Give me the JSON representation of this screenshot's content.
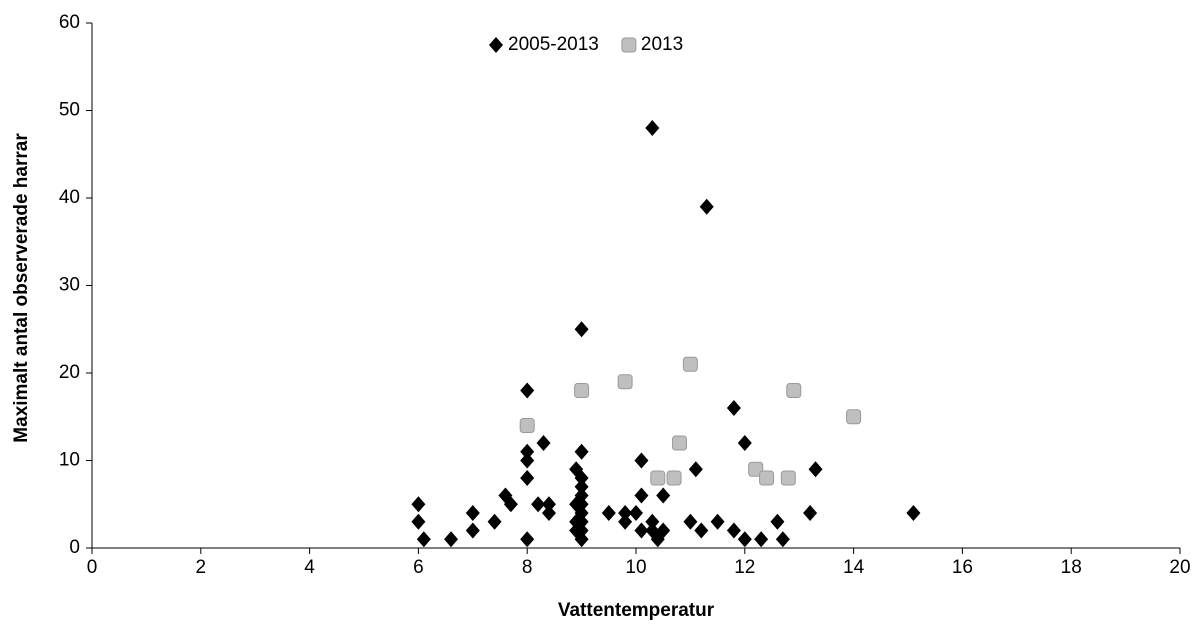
{
  "chart_data": {
    "type": "scatter",
    "x_label": "Vattentemperatur",
    "y_label": "Maximalt  antal observerade harrar",
    "xlim": [
      0,
      20
    ],
    "xticks": [
      0,
      2,
      4,
      6,
      8,
      10,
      12,
      14,
      16,
      18,
      20
    ],
    "ylim": [
      0,
      60
    ],
    "yticks": [
      0,
      10,
      20,
      30,
      40,
      50,
      60
    ],
    "grid": false,
    "legend": "top",
    "series": [
      {
        "name": "2005-2013",
        "color": "#000000",
        "marker": "diamond",
        "x": [
          6,
          6,
          6.1,
          6.6,
          7,
          7,
          7.4,
          7.6,
          7.7,
          8,
          8,
          8,
          8,
          8,
          8.2,
          8.3,
          8.4,
          8.4,
          8.9,
          8.9,
          8.9,
          8.9,
          9,
          9,
          9,
          9,
          9,
          9,
          9,
          9,
          9,
          9,
          9.5,
          9.8,
          9.8,
          10,
          10.1,
          10.1,
          10.1,
          10.3,
          10.3,
          10.3,
          10.4,
          10.5,
          10.5,
          11,
          11.1,
          11.2,
          11.3,
          11.5,
          11.8,
          11.8,
          12,
          12,
          12.3,
          12.6,
          12.7,
          13.2,
          13.3,
          15.1
        ],
        "values": [
          5,
          3,
          1,
          1,
          4,
          2,
          3,
          6,
          5,
          18,
          11,
          10,
          8,
          1,
          5,
          12,
          5,
          4,
          9,
          5,
          3,
          2,
          25,
          11,
          8,
          7,
          6,
          5,
          4,
          3,
          2,
          1,
          4,
          4,
          3,
          4,
          10,
          6,
          2,
          48,
          3,
          2,
          1,
          6,
          2,
          3,
          9,
          2,
          39,
          3,
          16,
          2,
          12,
          1,
          1,
          3,
          1,
          4,
          9,
          4
        ]
      },
      {
        "name": "2013",
        "color": "#bfbfbf",
        "marker": "square",
        "x": [
          8,
          9,
          9.8,
          10.4,
          10.7,
          10.8,
          11,
          12.2,
          12.4,
          12.8,
          12.9,
          14
        ],
        "values": [
          14,
          18,
          19,
          8,
          8,
          12,
          21,
          9,
          8,
          8,
          18,
          15
        ]
      }
    ]
  }
}
